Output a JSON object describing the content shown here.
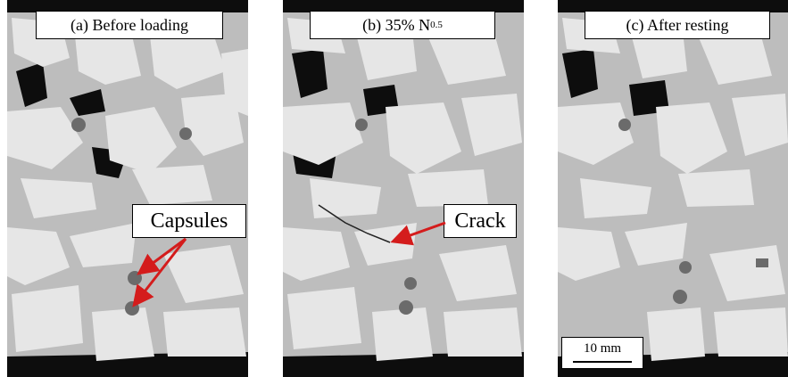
{
  "panels": [
    {
      "label_prefix": "(a) Before loading",
      "label_sub": ""
    },
    {
      "label_prefix": "(b) 35% N",
      "label_sub": "0.5"
    },
    {
      "label_prefix": "(c) After resting",
      "label_sub": ""
    }
  ],
  "annotations": {
    "capsules": "Capsules",
    "crack": "Crack"
  },
  "scalebar": {
    "label": "10 mm"
  },
  "colors": {
    "aggregate": "#e6e6e6",
    "mortar": "#bdbdbd",
    "void": "#0d0d0d",
    "capsule": "#6b6b6b",
    "arrow": "#d41c1c"
  }
}
